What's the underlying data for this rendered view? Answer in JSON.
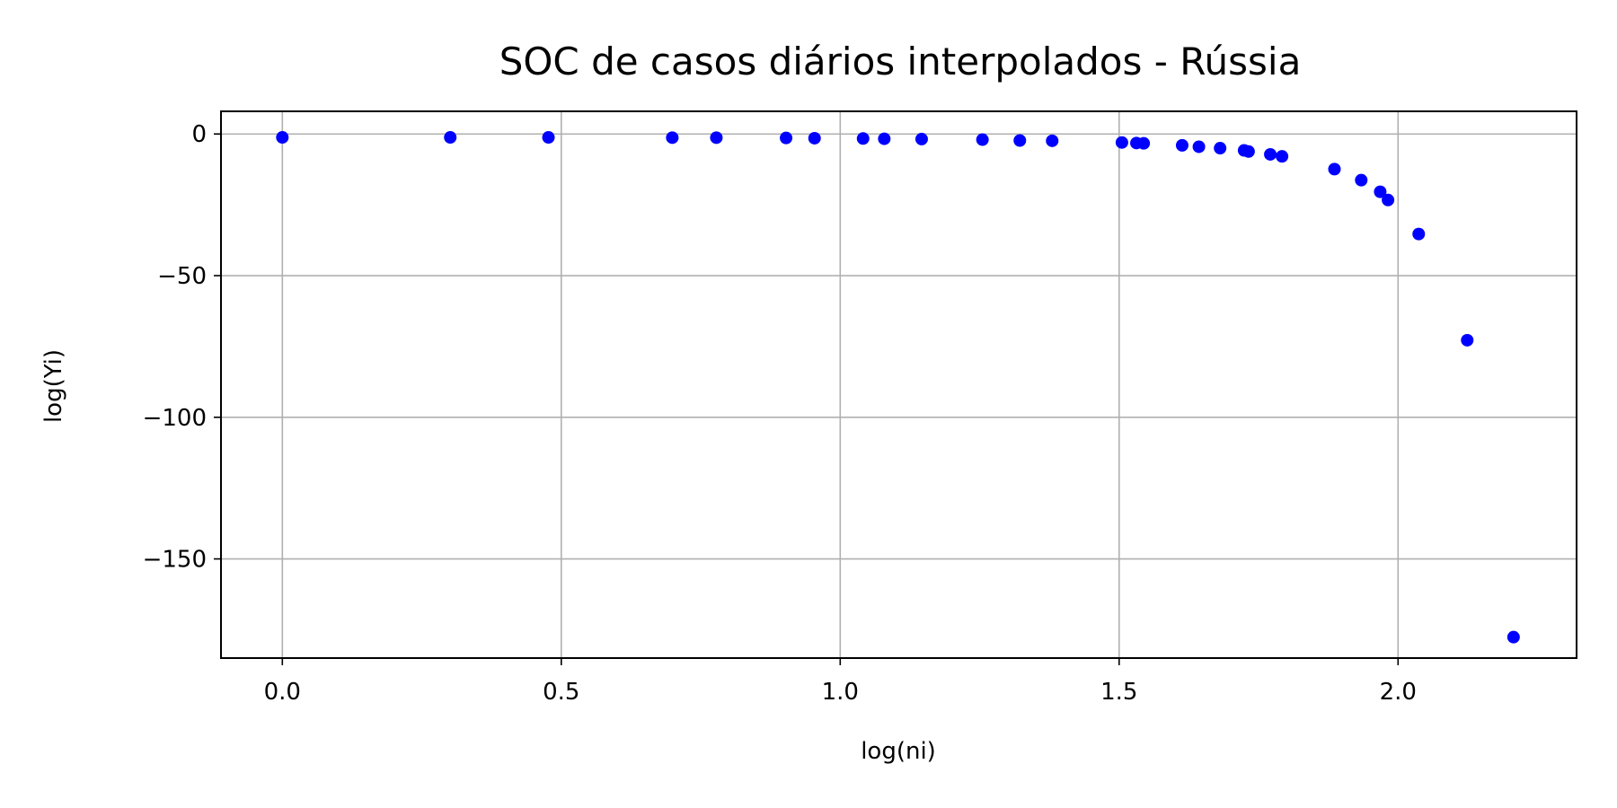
{
  "chart_data": {
    "type": "scatter",
    "title": "SOC de casos diários interpolados - Rússia",
    "xlabel": "log(ni)",
    "ylabel": "log(Yi)",
    "xlim": [
      -0.11,
      2.32
    ],
    "ylim": [
      -185,
      8
    ],
    "grid": true,
    "marker_color": "#0000ff",
    "x_ticks": [
      0.0,
      0.5,
      1.0,
      1.5,
      2.0
    ],
    "x_tick_labels": [
      "0.0",
      "0.5",
      "1.0",
      "1.5",
      "2.0"
    ],
    "y_ticks": [
      0,
      -50,
      -100,
      -150
    ],
    "y_tick_labels": [
      "0",
      "−50",
      "−100",
      "−150"
    ],
    "points": [
      {
        "x": 0.0,
        "y": -1.2
      },
      {
        "x": 0.301,
        "y": -1.2
      },
      {
        "x": 0.477,
        "y": -1.2
      },
      {
        "x": 0.699,
        "y": -1.3
      },
      {
        "x": 0.778,
        "y": -1.3
      },
      {
        "x": 0.903,
        "y": -1.4
      },
      {
        "x": 0.954,
        "y": -1.5
      },
      {
        "x": 1.041,
        "y": -1.6
      },
      {
        "x": 1.079,
        "y": -1.7
      },
      {
        "x": 1.146,
        "y": -1.8
      },
      {
        "x": 1.255,
        "y": -2.0
      },
      {
        "x": 1.322,
        "y": -2.3
      },
      {
        "x": 1.38,
        "y": -2.4
      },
      {
        "x": 1.505,
        "y": -3.0
      },
      {
        "x": 1.531,
        "y": -3.2
      },
      {
        "x": 1.544,
        "y": -3.3
      },
      {
        "x": 1.613,
        "y": -4.0
      },
      {
        "x": 1.643,
        "y": -4.5
      },
      {
        "x": 1.681,
        "y": -5.0
      },
      {
        "x": 1.724,
        "y": -5.8
      },
      {
        "x": 1.732,
        "y": -6.2
      },
      {
        "x": 1.771,
        "y": -7.2
      },
      {
        "x": 1.792,
        "y": -7.9
      },
      {
        "x": 1.886,
        "y": -12.4
      },
      {
        "x": 1.934,
        "y": -16.3
      },
      {
        "x": 1.968,
        "y": -20.4
      },
      {
        "x": 1.982,
        "y": -23.3
      },
      {
        "x": 2.037,
        "y": -35.3
      },
      {
        "x": 2.124,
        "y": -72.8
      },
      {
        "x": 2.207,
        "y": -177.6
      }
    ]
  }
}
